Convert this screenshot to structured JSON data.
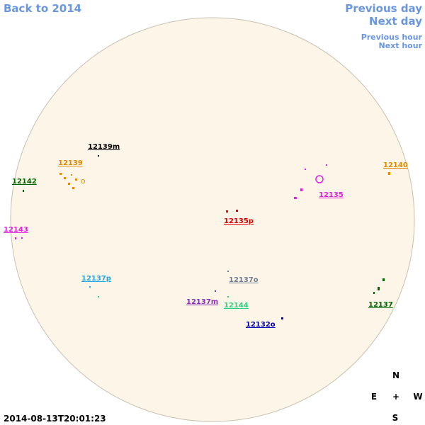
{
  "nav": {
    "back": "Back to 2014",
    "previous_day": "Previous day",
    "next_day": "Next day",
    "previous_hour": "Previous hour",
    "next_hour": "Next hour"
  },
  "regions": [
    {
      "label": "12139m",
      "color": "#000000"
    },
    {
      "label": "12139",
      "color": "#e08a00"
    },
    {
      "label": "12142",
      "color": "#006600"
    },
    {
      "label": "12140",
      "color": "#e08a00"
    },
    {
      "label": "12135",
      "color": "#e020e0"
    },
    {
      "label": "12135p",
      "color": "#e00000"
    },
    {
      "label": "12143",
      "color": "#e020e0"
    },
    {
      "label": "12137p",
      "color": "#20a8e0"
    },
    {
      "label": "12137o",
      "color": "#708090"
    },
    {
      "label": "12137m",
      "color": "#8a30b8"
    },
    {
      "label": "12144",
      "color": "#30d080"
    },
    {
      "label": "12137",
      "color": "#006600"
    },
    {
      "label": "12132o",
      "color": "#0000b0"
    }
  ],
  "compass": {
    "north": "N",
    "east": "E",
    "center": "+",
    "west": "W",
    "south": "S"
  },
  "timestamp": "2014-08-13T20:01:23"
}
